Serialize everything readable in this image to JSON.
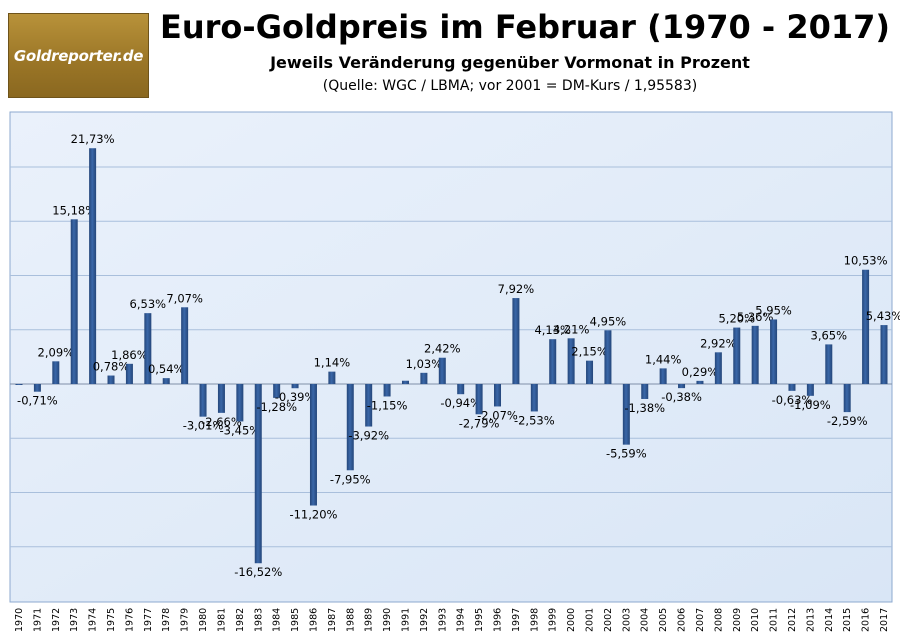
{
  "logo_text": "Goldreporter.de",
  "chart_data": {
    "type": "bar",
    "title": "Euro-Goldpreis im Februar (1970 - 2017)",
    "subtitle": "Jeweils Veränderung gegenüber Vormonat in Prozent",
    "source": "(Quelle: WGC / LBMA; vor 2001 = DM-Kurs / 1,95583)",
    "xlabel": "",
    "ylabel": "",
    "ylim": [
      -20,
      25
    ],
    "grid": true,
    "categories": [
      "1970",
      "1971",
      "1972",
      "1973",
      "1974",
      "1975",
      "1976",
      "1977",
      "1978",
      "1979",
      "1980",
      "1981",
      "1982",
      "1983",
      "1984",
      "1985",
      "1986",
      "1987",
      "1988",
      "1989",
      "1990",
      "1991",
      "1992",
      "1993",
      "1994",
      "1995",
      "1996",
      "1997",
      "1998",
      "1999",
      "2000",
      "2001",
      "2002",
      "2003",
      "2004",
      "2005",
      "2006",
      "2007",
      "2008",
      "2009",
      "2010",
      "2011",
      "2012",
      "2013",
      "2014",
      "2015",
      "2016",
      "2017"
    ],
    "values": [
      0.0,
      -0.71,
      2.09,
      15.18,
      21.73,
      0.78,
      1.86,
      6.53,
      0.54,
      7.07,
      -3.01,
      -2.66,
      -3.45,
      -16.52,
      -1.28,
      -0.39,
      -11.2,
      1.14,
      -7.95,
      -3.92,
      -1.15,
      0.3,
      1.03,
      2.42,
      -0.94,
      -2.79,
      -2.07,
      7.92,
      -2.53,
      4.13,
      4.21,
      2.15,
      4.95,
      -5.59,
      -1.38,
      1.44,
      -0.38,
      0.29,
      2.92,
      5.2,
      5.36,
      5.95,
      -0.63,
      -1.09,
      3.65,
      -2.59,
      10.53,
      5.43
    ],
    "data_labels": [
      "",
      "-0,71%",
      "2,09%",
      "15,18%",
      "21,73%",
      "0,78%",
      "1,86%",
      "6,53%",
      "0,54%",
      "7,07%",
      "-3,01%",
      "-2,66%",
      "-3,45%",
      "-16,52%",
      "-1,28%",
      "-0,39%",
      "-11,20%",
      "1,14%",
      "-7,95%",
      "-3,92%",
      "-1,15%",
      "",
      "1,03%",
      "2,42%",
      "-0,94%",
      "-2,79%",
      "-2,07%",
      "7,92%",
      "-2,53%",
      "4,13%",
      "4,21%",
      "2,15%",
      "4,95%",
      "-5,59%",
      "-1,38%",
      "1,44%",
      "-0,38%",
      "0,29%",
      "2,92%",
      "5,20%",
      "5,36%",
      "5,95%",
      "-0,63%",
      "-1,09%",
      "3,65%",
      "-2,59%",
      "10,53%",
      "5,43%"
    ],
    "colors": {
      "bar": "#3a67a8",
      "bar_dark": "#24467a",
      "plot_bg": "#d9e6f6",
      "grid": "#a9bfdc"
    }
  }
}
